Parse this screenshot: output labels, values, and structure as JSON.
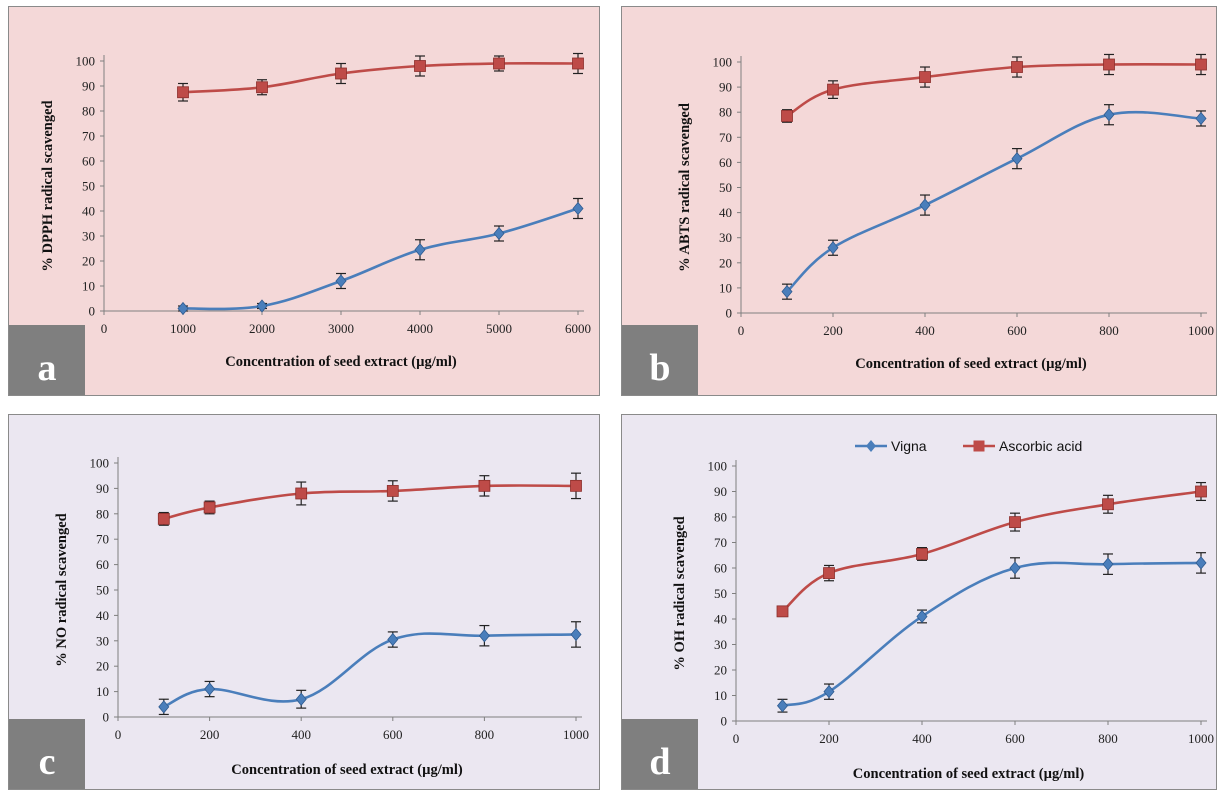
{
  "colors": {
    "panel_pink": "#f4d8d8",
    "panel_lavender": "#ebe7f1",
    "vigna": "#4a7ebb",
    "ascorbic": "#be4b48",
    "label_box": "#7f7f7f",
    "border": "#8a8a8a"
  },
  "legend": {
    "vigna": "Vigna",
    "ascorbic": "Ascorbic acid"
  },
  "chart_data": [
    {
      "panel": "a",
      "type": "line",
      "xlabel": "Concentration of seed extract (µg/ml)",
      "ylabel": "% DPPH radical scavenged",
      "xlim": [
        0,
        6000
      ],
      "ylim": [
        0,
        100
      ],
      "xticks": [
        0,
        1000,
        2000,
        3000,
        4000,
        5000,
        6000
      ],
      "yticks": [
        0,
        10,
        20,
        30,
        40,
        50,
        60,
        70,
        80,
        90,
        100
      ],
      "series": [
        {
          "name": "Vigna",
          "x": [
            1000,
            2000,
            3000,
            4000,
            5000,
            6000
          ],
          "values": [
            1,
            2,
            12,
            24.5,
            31,
            41
          ],
          "err": [
            1,
            1,
            3,
            4,
            3,
            4
          ]
        },
        {
          "name": "Ascorbic acid",
          "x": [
            1000,
            2000,
            3000,
            4000,
            5000,
            6000
          ],
          "values": [
            87.5,
            89.5,
            95,
            98,
            99,
            99
          ],
          "err": [
            3.5,
            3,
            4,
            4,
            3,
            4
          ]
        }
      ]
    },
    {
      "panel": "b",
      "type": "line",
      "xlabel": "Concentration of seed extract (µg/ml)",
      "ylabel": "% ABTS radical scavenged",
      "xlim": [
        0,
        1000
      ],
      "ylim": [
        0,
        100
      ],
      "xticks": [
        0,
        200,
        400,
        600,
        800,
        1000
      ],
      "yticks": [
        0,
        10,
        20,
        30,
        40,
        50,
        60,
        70,
        80,
        90,
        100
      ],
      "series": [
        {
          "name": "Vigna",
          "x": [
            100,
            200,
            400,
            600,
            800,
            1000
          ],
          "values": [
            8.5,
            26,
            43,
            61.5,
            79,
            77.5
          ],
          "err": [
            3,
            3,
            4,
            4,
            4,
            3
          ]
        },
        {
          "name": "Ascorbic acid",
          "x": [
            100,
            200,
            400,
            600,
            800,
            1000
          ],
          "values": [
            78.5,
            89,
            94,
            98,
            99,
            99
          ],
          "err": [
            2.5,
            3.5,
            4,
            4,
            4,
            4
          ]
        }
      ]
    },
    {
      "panel": "c",
      "type": "line",
      "xlabel": "Concentration of seed extract (µg/ml)",
      "ylabel": "% NO radical scavenged",
      "xlim": [
        0,
        1000
      ],
      "ylim": [
        0,
        100
      ],
      "xticks": [
        0,
        200,
        400,
        600,
        800,
        1000
      ],
      "yticks": [
        0,
        10,
        20,
        30,
        40,
        50,
        60,
        70,
        80,
        90,
        100
      ],
      "series": [
        {
          "name": "Vigna",
          "x": [
            100,
            200,
            400,
            600,
            800,
            1000
          ],
          "values": [
            4,
            11,
            7,
            30.5,
            32,
            32.5
          ],
          "err": [
            3,
            3,
            3.5,
            3,
            4,
            5
          ]
        },
        {
          "name": "Ascorbic acid",
          "x": [
            100,
            200,
            400,
            600,
            800,
            1000
          ],
          "values": [
            78,
            82.5,
            88,
            89,
            91,
            91
          ],
          "err": [
            2.5,
            2.5,
            4.5,
            4,
            4,
            5
          ]
        }
      ]
    },
    {
      "panel": "d",
      "type": "line",
      "xlabel": "Concentration of seed extract (µg/ml)",
      "ylabel": "% OH radical scavenged",
      "xlim": [
        0,
        1000
      ],
      "ylim": [
        0,
        100
      ],
      "xticks": [
        0,
        200,
        400,
        600,
        800,
        1000
      ],
      "yticks": [
        0,
        10,
        20,
        30,
        40,
        50,
        60,
        70,
        80,
        90,
        100
      ],
      "legend": "top",
      "series": [
        {
          "name": "Vigna",
          "x": [
            100,
            200,
            400,
            600,
            800,
            1000
          ],
          "values": [
            6,
            11.5,
            41,
            60,
            61.5,
            62
          ],
          "err": [
            2.5,
            3,
            2.5,
            4,
            4,
            4
          ]
        },
        {
          "name": "Ascorbic acid",
          "x": [
            100,
            200,
            400,
            600,
            800,
            1000
          ],
          "values": [
            43,
            58,
            65.5,
            78,
            85,
            90
          ],
          "err": [
            2,
            3,
            2.5,
            3.5,
            3.5,
            3.5
          ]
        }
      ]
    }
  ]
}
